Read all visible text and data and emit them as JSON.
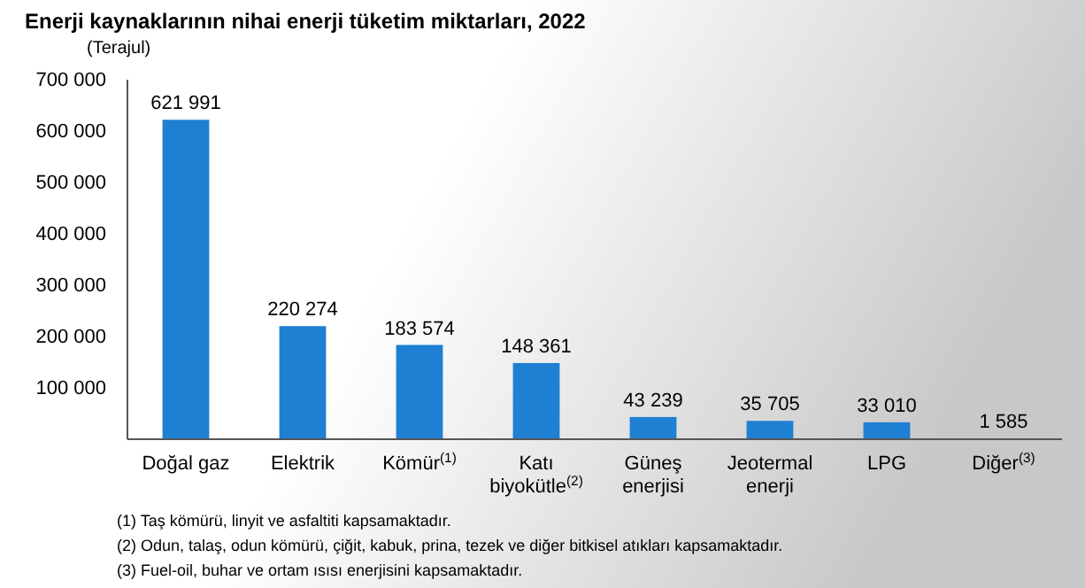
{
  "chart_data": {
    "type": "bar",
    "title": "Enerji kaynaklarının nihai enerji tüketim miktarları, 2022",
    "ylabel": "(Terajul)",
    "categories": [
      "Doğal gaz",
      "Elektrik",
      "Kömür$^{(1)}$",
      "Katı\nbiyokütle$^{(2)}$",
      "Güneş\nenerjisi",
      "Jeotermal\nenerji",
      "LPG",
      "Diğer$^{(3)}$"
    ],
    "values": [
      621991,
      220274,
      183574,
      148361,
      43239,
      35705,
      33010,
      1585
    ],
    "value_labels": [
      "621 991",
      "220 274",
      "183 574",
      "148 361",
      "43 239",
      "35 705",
      "33 010",
      "1 585"
    ],
    "color": "#1f7fd2",
    "ylim": [
      0,
      700000
    ],
    "yticks": [
      {
        "value": 100000,
        "label": "100 000"
      },
      {
        "value": 200000,
        "label": "200 000"
      },
      {
        "value": 300000,
        "label": "300 000"
      },
      {
        "value": 400000,
        "label": "400 000"
      },
      {
        "value": 500000,
        "label": "500 000"
      },
      {
        "value": 600000,
        "label": "600 000"
      },
      {
        "value": 700000,
        "label": "700 000"
      }
    ],
    "grid": false,
    "annotations": [
      "(1) Taş kömürü, linyit ve asfaltiti kapsamaktadır.",
      "(2) Odun, talaş, odun kömürü, çiğit, kabuk, prina, tezek ve diğer bitkisel atıkları kapsamaktadır.",
      "(3) Fuel-oil, buhar ve ortam ısısı enerjisini kapsamaktadır."
    ]
  }
}
